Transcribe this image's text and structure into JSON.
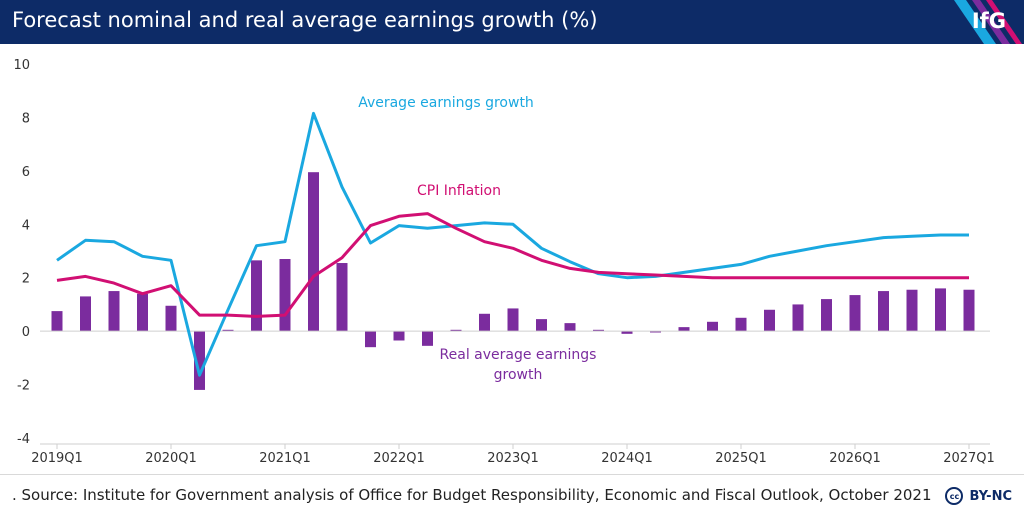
{
  "header": {
    "title": "Forecast nominal and real average earnings growth (%)",
    "logo_text": "IfG"
  },
  "footer": {
    "source": ". Source: Institute for Government analysis of Office for Budget Responsibility, Economic and Fiscal Outlook, October 2021",
    "license": "BY-NC",
    "license_icon": "cc"
  },
  "colors": {
    "header_bg": "#0d2b67",
    "bars": "#7b2c9e",
    "avg_earnings": "#1aa8e0",
    "cpi": "#d10f73"
  },
  "chart_data": {
    "type": "bar",
    "ylim": [
      -4,
      10
    ],
    "yticks": [
      "10",
      "8",
      "6",
      "4",
      "2",
      "0",
      "-2",
      "-4"
    ],
    "ytick_values": [
      10,
      8,
      6,
      4,
      2,
      0,
      -2,
      -4
    ],
    "xtick_labels": [
      "2019Q1",
      "2020Q1",
      "2021Q1",
      "2022Q1",
      "2023Q1",
      "2024Q1",
      "2025Q1",
      "2026Q1",
      "2027Q1"
    ],
    "xtick_indices": [
      0,
      4,
      8,
      12,
      16,
      20,
      24,
      28,
      32
    ],
    "categories": [
      "2019Q1",
      "2019Q2",
      "2019Q3",
      "2019Q4",
      "2020Q1",
      "2020Q2",
      "2020Q3",
      "2020Q4",
      "2021Q1",
      "2021Q2",
      "2021Q3",
      "2021Q4",
      "2022Q1",
      "2022Q2",
      "2022Q3",
      "2022Q4",
      "2023Q1",
      "2023Q2",
      "2023Q3",
      "2023Q4",
      "2024Q1",
      "2024Q2",
      "2024Q3",
      "2024Q4",
      "2025Q1",
      "2025Q2",
      "2025Q3",
      "2025Q4",
      "2026Q1",
      "2026Q2",
      "2026Q3",
      "2026Q4",
      "2027Q1"
    ],
    "series": [
      {
        "name": "Real average earnings growth",
        "type": "bar",
        "values": [
          0.75,
          1.3,
          1.5,
          1.4,
          0.95,
          -2.2,
          0.05,
          2.65,
          2.7,
          5.95,
          2.55,
          -0.6,
          -0.35,
          -0.55,
          0.05,
          0.65,
          0.85,
          0.45,
          0.3,
          0.05,
          -0.1,
          -0.05,
          0.15,
          0.35,
          0.5,
          0.8,
          1.0,
          1.2,
          1.35,
          1.5,
          1.55,
          1.6,
          1.55
        ]
      },
      {
        "name": "Average earnings growth",
        "type": "line",
        "values": [
          2.65,
          3.4,
          3.35,
          2.8,
          2.65,
          -1.65,
          0.8,
          3.2,
          3.35,
          8.15,
          5.4,
          3.3,
          3.95,
          3.85,
          3.95,
          4.05,
          4.0,
          3.1,
          2.6,
          2.15,
          2.0,
          2.05,
          2.2,
          2.35,
          2.5,
          2.8,
          3.0,
          3.2,
          3.35,
          3.5,
          3.55,
          3.6,
          3.6
        ]
      },
      {
        "name": "CPI Inflation",
        "type": "line",
        "values": [
          1.9,
          2.05,
          1.8,
          1.4,
          1.7,
          0.6,
          0.6,
          0.55,
          0.6,
          2.05,
          2.75,
          3.95,
          4.3,
          4.4,
          3.85,
          3.35,
          3.1,
          2.65,
          2.35,
          2.2,
          2.15,
          2.1,
          2.05,
          2.0,
          2.0,
          2.0,
          2.0,
          2.0,
          2.0,
          2.0,
          2.0,
          2.0,
          2.0
        ]
      }
    ],
    "annotations": {
      "avg_label": "Average earnings growth",
      "cpi_label": "CPI Inflation",
      "real_label_1": "Real average earnings",
      "real_label_2": "growth"
    },
    "grid": false,
    "legend": "none"
  }
}
